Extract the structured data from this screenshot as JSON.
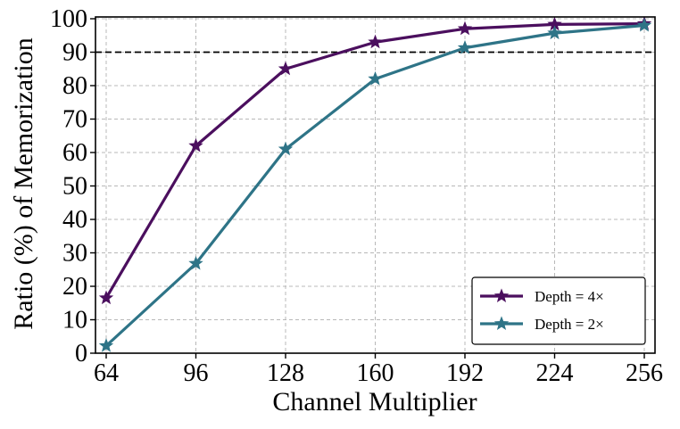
{
  "chart_data": {
    "type": "line",
    "xlabel": "Channel Multiplier",
    "ylabel": "Ratio (%) of Memorization",
    "categories": [
      "64",
      "96",
      "128",
      "160",
      "192",
      "224",
      "256"
    ],
    "x": [
      64,
      96,
      128,
      160,
      192,
      224,
      256
    ],
    "xlim": [
      64,
      256
    ],
    "ylim": [
      0,
      100
    ],
    "yticks": [
      0,
      10,
      20,
      30,
      40,
      50,
      60,
      70,
      80,
      90,
      100
    ],
    "grid": true,
    "reference_line": {
      "y": 90,
      "style": "dashed",
      "color": "#000000"
    },
    "legend_position": "bottom-right",
    "series": [
      {
        "name": "Depth = 4×",
        "color": "#4b0f5e",
        "marker": "star",
        "values": [
          16.5,
          62,
          85,
          93,
          97,
          98.3,
          98.5
        ]
      },
      {
        "name": "Depth = 2×",
        "color": "#2e7487",
        "marker": "star",
        "values": [
          2.2,
          26.8,
          61,
          82,
          91.3,
          95.7,
          98
        ]
      }
    ]
  }
}
